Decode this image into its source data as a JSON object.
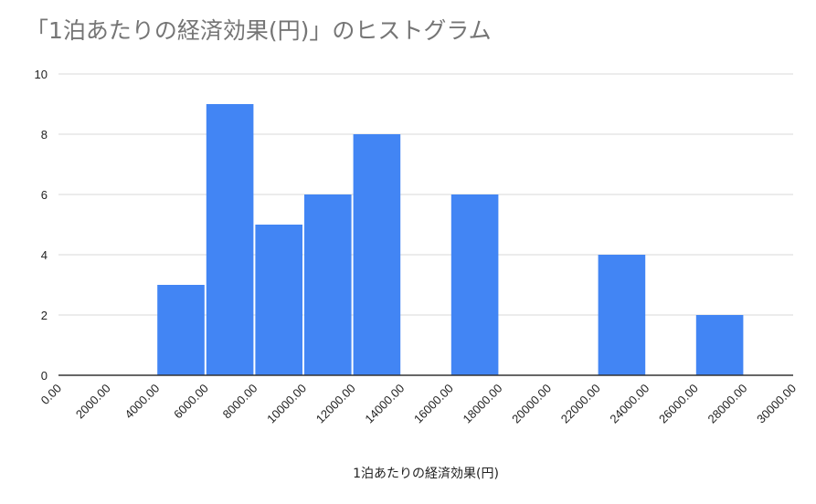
{
  "chart_data": {
    "type": "bar",
    "title": "「1泊あたりの経済効果(円)」のヒストグラム",
    "xlabel": "1泊あたりの経済効果(円)",
    "ylabel": "",
    "x_ticks": [
      "0.00",
      "2000.00",
      "4000.00",
      "6000.00",
      "8000.00",
      "10000.00",
      "12000.00",
      "14000.00",
      "16000.00",
      "18000.00",
      "20000.00",
      "22000.00",
      "24000.00",
      "26000.00",
      "28000.00",
      "30000.00"
    ],
    "xlim": [
      0,
      30000
    ],
    "ylim": [
      0,
      10
    ],
    "y_ticks": [
      0,
      2,
      4,
      6,
      8,
      10
    ],
    "bins": [
      {
        "start": 4000,
        "end": 6000,
        "count": 3
      },
      {
        "start": 6000,
        "end": 8000,
        "count": 9
      },
      {
        "start": 8000,
        "end": 10000,
        "count": 5
      },
      {
        "start": 10000,
        "end": 12000,
        "count": 6
      },
      {
        "start": 12000,
        "end": 14000,
        "count": 8
      },
      {
        "start": 16000,
        "end": 18000,
        "count": 6
      },
      {
        "start": 22000,
        "end": 24000,
        "count": 4
      },
      {
        "start": 26000,
        "end": 28000,
        "count": 2
      }
    ],
    "bar_color": "#4285f4",
    "grid": true,
    "legend": "none"
  }
}
